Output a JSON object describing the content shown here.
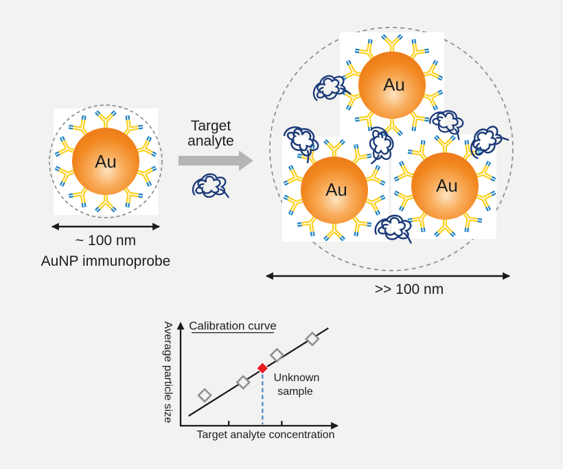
{
  "background_color": "#f2f2f1",
  "diagram": {
    "probe": {
      "particle_label": "Au",
      "size_label": "~ 100 nm",
      "caption": "AuNP immunoprobe"
    },
    "reaction": {
      "label_line1": "Target",
      "label_line2": "analyte"
    },
    "aggregate": {
      "particle_label": "Au",
      "size_label": ">> 100 nm"
    },
    "colors": {
      "gold_core": "#ee7d1b",
      "gold_core_highlight": "#fde3c0",
      "antibody_yellow": "#fdd01e",
      "antibody_blue": "#1b7fc4",
      "analyte_navy": "#1b3a78",
      "dashed_outline": "#8a8a8a",
      "reaction_arrow": "#b5b5b5",
      "text": "#1c1c1c"
    }
  },
  "chart_data": {
    "type": "scatter",
    "title": "Calibration curve",
    "xlabel": "Target analyte concentration",
    "ylabel": "Average particle size",
    "annotation_line1": "Unknown",
    "annotation_line2": "sample",
    "axis_range": {
      "x": [
        0,
        1
      ],
      "y": [
        0,
        1
      ]
    },
    "grid": false,
    "legend": "none",
    "calibration_points": [
      {
        "x": 0.15,
        "y": 0.28
      },
      {
        "x": 0.39,
        "y": 0.4
      },
      {
        "x": 0.6,
        "y": 0.65
      },
      {
        "x": 0.82,
        "y": 0.8
      }
    ],
    "unknown_sample_point": {
      "x": 0.51,
      "y": 0.53
    },
    "trend_line": {
      "x1": 0.05,
      "y1": 0.09,
      "x2": 0.92,
      "y2": 0.9
    },
    "x_ticks": [
      0.3,
      0.63
    ],
    "colors": {
      "calibration_marker": "#8e9091",
      "unknown_marker": "#ec1c24",
      "guide_line": "#4d87c7",
      "trend_line": "#1a1a1a",
      "axis": "#1a1a1a"
    }
  }
}
